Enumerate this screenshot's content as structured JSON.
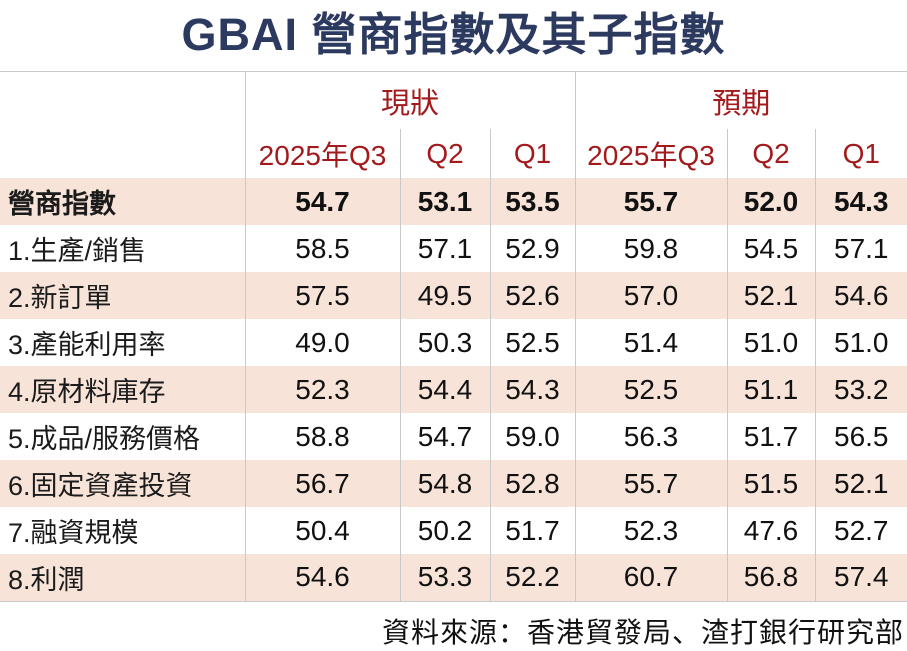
{
  "title": "GBAI 營商指數及其子指數",
  "colors": {
    "title_navy": "#2c3a60",
    "header_red": "#a21a1c",
    "row_pink": "#f7e3d8",
    "grid_gray": "#c9c9c9"
  },
  "chart_data": {
    "type": "table",
    "title": "GBAI 營商指數及其子指數",
    "groups": [
      {
        "label": "現狀",
        "subcolumns": [
          "2025年Q3",
          "Q2",
          "Q1"
        ]
      },
      {
        "label": "預期",
        "subcolumns": [
          "2025年Q3",
          "Q2",
          "Q1"
        ]
      }
    ],
    "columns": [
      "現狀 2025年Q3",
      "現狀 Q2",
      "現狀 Q1",
      "預期 2025年Q3",
      "預期 Q2",
      "預期 Q1"
    ],
    "rows": [
      {
        "label": "營商指數",
        "bold": true,
        "values": [
          "54.7",
          "53.1",
          "53.5",
          "55.7",
          "52.0",
          "54.3"
        ]
      },
      {
        "label": "1.生產/銷售",
        "bold": false,
        "values": [
          "58.5",
          "57.1",
          "52.9",
          "59.8",
          "54.5",
          "57.1"
        ]
      },
      {
        "label": "2.新訂單",
        "bold": false,
        "values": [
          "57.5",
          "49.5",
          "52.6",
          "57.0",
          "52.1",
          "54.6"
        ]
      },
      {
        "label": "3.產能利用率",
        "bold": false,
        "values": [
          "49.0",
          "50.3",
          "52.5",
          "51.4",
          "51.0",
          "51.0"
        ]
      },
      {
        "label": "4.原材料庫存",
        "bold": false,
        "values": [
          "52.3",
          "54.4",
          "54.3",
          "52.5",
          "51.1",
          "53.2"
        ]
      },
      {
        "label": "5.成品/服務價格",
        "bold": false,
        "values": [
          "58.8",
          "54.7",
          "59.0",
          "56.3",
          "51.7",
          "56.5"
        ]
      },
      {
        "label": "6.固定資產投資",
        "bold": false,
        "values": [
          "56.7",
          "54.8",
          "52.8",
          "55.7",
          "51.5",
          "52.1"
        ]
      },
      {
        "label": "7.融資規模",
        "bold": false,
        "values": [
          "50.4",
          "50.2",
          "51.7",
          "52.3",
          "47.6",
          "52.7"
        ]
      },
      {
        "label": "8.利潤",
        "bold": false,
        "values": [
          "54.6",
          "53.3",
          "52.2",
          "60.7",
          "56.8",
          "57.4"
        ]
      }
    ],
    "source": "資料來源：香港貿發局、渣打銀行研究部"
  }
}
